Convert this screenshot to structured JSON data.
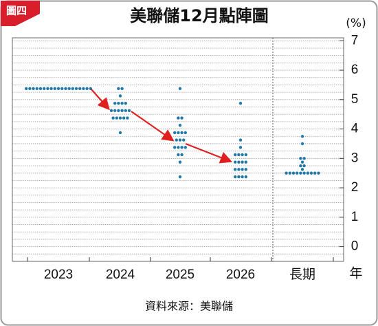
{
  "chart_data": {
    "type": "dot",
    "title": "美聯儲12月點陣圖",
    "y_unit": "(%)",
    "x_unit": "年",
    "source": "資料來源：美聯儲",
    "badge": "圖四",
    "categories": [
      "2023",
      "2024",
      "2025",
      "2026",
      "長期"
    ],
    "dots": [
      [
        5.375,
        5.375,
        5.375,
        5.375,
        5.375,
        5.375,
        5.375,
        5.375,
        5.375,
        5.375,
        5.375,
        5.375,
        5.375,
        5.375,
        5.375,
        5.375,
        5.375,
        5.375,
        5.375
      ],
      [
        5.375,
        5.375,
        5.125,
        4.875,
        4.875,
        4.875,
        4.875,
        4.625,
        4.625,
        4.625,
        4.625,
        4.625,
        4.625,
        4.375,
        4.375,
        4.375,
        4.375,
        4.375,
        3.875
      ],
      [
        5.375,
        4.375,
        4.375,
        4.125,
        3.875,
        3.875,
        3.875,
        3.875,
        3.625,
        3.625,
        3.625,
        3.375,
        3.375,
        3.375,
        3.375,
        3.125,
        3.125,
        2.875,
        2.375
      ],
      [
        4.875,
        3.625,
        3.375,
        3.125,
        3.125,
        3.125,
        3.125,
        2.875,
        2.875,
        2.875,
        2.875,
        2.625,
        2.625,
        2.625,
        2.625,
        2.375,
        2.375,
        2.375,
        2.375
      ],
      [
        3.75,
        3.5,
        3.0,
        3.0,
        2.875,
        2.75,
        2.75,
        2.625,
        2.5,
        2.5,
        2.5,
        2.5,
        2.5,
        2.5,
        2.5,
        2.5,
        2.5,
        2.5
      ]
    ],
    "color": "#1f78a8",
    "ylim": [
      -0.5,
      7.1
    ],
    "yticks": [
      0,
      1,
      2,
      3,
      4,
      5,
      6,
      7
    ],
    "minor_grid_step": 0.25,
    "separator_before": 4
  }
}
